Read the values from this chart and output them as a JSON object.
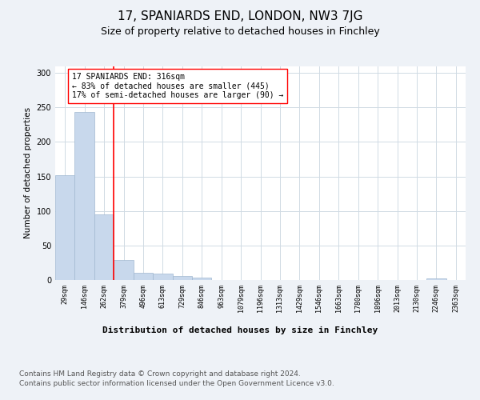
{
  "title": "17, SPANIARDS END, LONDON, NW3 7JG",
  "subtitle": "Size of property relative to detached houses in Finchley",
  "xlabel": "Distribution of detached houses by size in Finchley",
  "ylabel": "Number of detached properties",
  "bar_labels": [
    "29sqm",
    "146sqm",
    "262sqm",
    "379sqm",
    "496sqm",
    "613sqm",
    "729sqm",
    "846sqm",
    "963sqm",
    "1079sqm",
    "1196sqm",
    "1313sqm",
    "1429sqm",
    "1546sqm",
    "1663sqm",
    "1780sqm",
    "1896sqm",
    "2013sqm",
    "2130sqm",
    "2246sqm",
    "2363sqm"
  ],
  "bar_values": [
    152,
    243,
    95,
    29,
    10,
    9,
    6,
    4,
    0,
    0,
    0,
    0,
    0,
    0,
    0,
    0,
    0,
    0,
    0,
    2,
    0
  ],
  "bar_color": "#c8d8ec",
  "bar_edge_color": "#a0b8d0",
  "property_label": "17 SPANIARDS END: 316sqm",
  "annotation_line1": "← 83% of detached houses are smaller (445)",
  "annotation_line2": "17% of semi-detached houses are larger (90) →",
  "red_line_x": 2.5,
  "ylim": [
    0,
    310
  ],
  "yticks": [
    0,
    50,
    100,
    150,
    200,
    250,
    300
  ],
  "footnote1": "Contains HM Land Registry data © Crown copyright and database right 2024.",
  "footnote2": "Contains public sector information licensed under the Open Government Licence v3.0.",
  "background_color": "#eef2f7",
  "plot_background": "#ffffff",
  "grid_color": "#d0dae4",
  "title_fontsize": 11,
  "subtitle_fontsize": 9,
  "xlabel_fontsize": 8,
  "ylabel_fontsize": 7.5,
  "footnote_fontsize": 6.5,
  "annot_fontsize": 7,
  "tick_fontsize": 6
}
